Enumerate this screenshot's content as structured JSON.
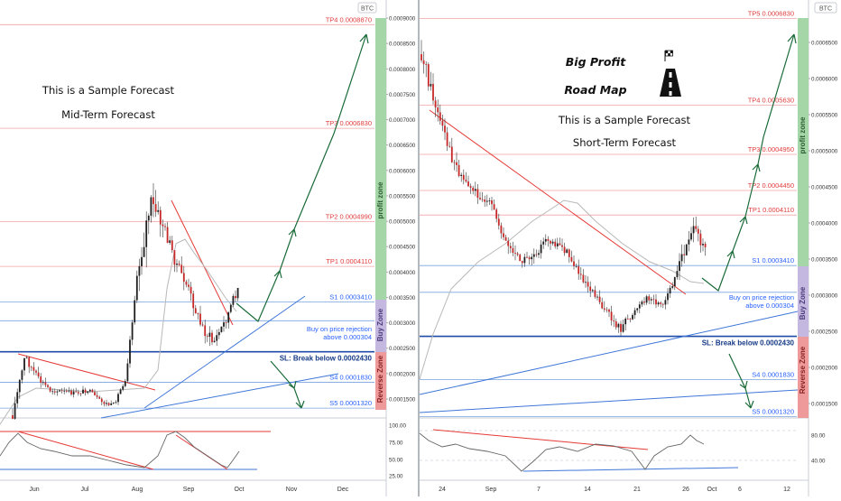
{
  "chart_data": [
    {
      "type": "candlestick",
      "panel": "left",
      "symbol_badge": "BTC",
      "price_axis_ticks": [
        "0.0009000",
        "0.0008500",
        "0.0008000",
        "0.0007500",
        "0.0007000",
        "0.0006500",
        "0.0006000",
        "0.0005500",
        "0.0005000",
        "0.0004500",
        "0.0004000",
        "0.0003500",
        "0.0003000",
        "0.0002500",
        "0.0002000",
        "0.0001500"
      ],
      "time_axis_labels": [
        "Jun",
        "Jul",
        "Aug",
        "Sep",
        "Oct",
        "Nov",
        "Dec"
      ],
      "levels": [
        {
          "label": "TP4 0.0008870",
          "value": 0.000887,
          "kind": "tp"
        },
        {
          "label": "TP3 0.0006830",
          "value": 0.000683,
          "kind": "tp"
        },
        {
          "label": "TP2 0.0004990",
          "value": 0.000499,
          "kind": "tp"
        },
        {
          "label": "TP1 0.0004110",
          "value": 0.000411,
          "kind": "tp"
        },
        {
          "label": "S1 0.0003410",
          "value": 0.000341,
          "kind": "s"
        },
        {
          "label": "S4 0.0001830",
          "value": 0.000183,
          "kind": "s"
        },
        {
          "label": "S5 0.0001320",
          "value": 0.000132,
          "kind": "s"
        }
      ],
      "entry": {
        "line1": "Buy on price rejection",
        "line2": "above 0.000304",
        "value": 0.000304
      },
      "stop_loss": {
        "label": "SL: Break below 0.0002430",
        "value": 0.000243
      },
      "annotations": [
        "This is a Sample Forecast",
        "Mid-Term Forecast"
      ],
      "zones": [
        "profit zone",
        "Buy Zone",
        "Reverse Zone"
      ],
      "oscillator_ticks": [
        "100.00",
        "75.00",
        "50.00",
        "25.00"
      ]
    },
    {
      "type": "candlestick",
      "panel": "right",
      "symbol_badge": "BTC",
      "price_axis_ticks": [
        "0.0006500",
        "0.0006000",
        "0.0005500",
        "0.0005000",
        "0.0004500",
        "0.0004000",
        "0.0003500",
        "0.0003000",
        "0.0002500",
        "0.0002000",
        "0.0001500"
      ],
      "time_axis_labels": [
        "24",
        "Sep",
        "7",
        "14",
        "21",
        "26",
        "Oct",
        "6",
        "12"
      ],
      "levels": [
        {
          "label": "TP5 0.0006830",
          "value": 0.000683,
          "kind": "tp"
        },
        {
          "label": "TP4 0.0005630",
          "value": 0.000563,
          "kind": "tp"
        },
        {
          "label": "TP3 0.0004950",
          "value": 0.000495,
          "kind": "tp"
        },
        {
          "label": "TP2 0.0004450",
          "value": 0.000445,
          "kind": "tp"
        },
        {
          "label": "TP1 0.0004110",
          "value": 0.000411,
          "kind": "tp"
        },
        {
          "label": "S1 0.0003410",
          "value": 0.000341,
          "kind": "s"
        },
        {
          "label": "S4 0.0001830",
          "value": 0.000183,
          "kind": "s"
        },
        {
          "label": "S5 0.0001320",
          "value": 0.000132,
          "kind": "s"
        }
      ],
      "entry": {
        "line1": "Buy on price rejection",
        "line2": "above 0.000304",
        "value": 0.000304
      },
      "stop_loss": {
        "label": "SL: Break below 0.0002430",
        "value": 0.000243
      },
      "annotations": [
        "Big Profit",
        "Road Map",
        "This is a Sample Forecast",
        "Short-Term Forecast"
      ],
      "zones": [
        "profit zone",
        "Buy Zone",
        "Reverse Zone"
      ],
      "oscillator_ticks": [
        "80.00",
        "40.00"
      ]
    }
  ],
  "colors": {
    "tp_line": "#f4a3a3",
    "tp_text": "#e03c3c",
    "support_line": "#7aa3e0",
    "support_text": "#2962ff",
    "sl_line": "#1e4aa8",
    "arrow": "#1b6b3a",
    "trend_red": "#e53935",
    "trend_blue": "#3f77d8",
    "profit_zone": "#a5d6a7",
    "buy_zone": "#c5b8e0",
    "reverse_zone": "#ef9a9a"
  }
}
